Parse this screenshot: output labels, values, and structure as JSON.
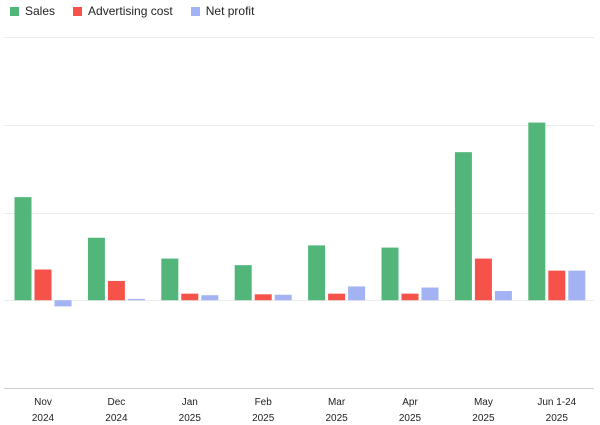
{
  "chart_data": {
    "type": "bar",
    "title": "",
    "xlabel": "",
    "ylabel": "",
    "legend_position": "top-left",
    "grid": true,
    "y_grid_values": [
      -4000,
      0,
      4000,
      8000,
      12000
    ],
    "ylim": [
      -4000,
      12000
    ],
    "categories": [
      [
        "Nov",
        "2024"
      ],
      [
        "Dec",
        "2024"
      ],
      [
        "Jan",
        "2025"
      ],
      [
        "Feb",
        "2025"
      ],
      [
        "Mar",
        "2025"
      ],
      [
        "Apr",
        "2025"
      ],
      [
        "May",
        "2025"
      ],
      [
        "Jun 1-24",
        "2025"
      ]
    ],
    "series": [
      {
        "name": "Sales",
        "color": "#52b57a",
        "values": [
          4700,
          2850,
          1900,
          1600,
          2500,
          2400,
          6750,
          8100
        ]
      },
      {
        "name": "Advertising cost",
        "color": "#f5524a",
        "values": [
          1400,
          880,
          300,
          270,
          300,
          300,
          1900,
          1350
        ]
      },
      {
        "name": "Net profit",
        "color": "#a2b2f2",
        "values": [
          -280,
          60,
          230,
          250,
          630,
          580,
          420,
          1350
        ]
      }
    ]
  }
}
